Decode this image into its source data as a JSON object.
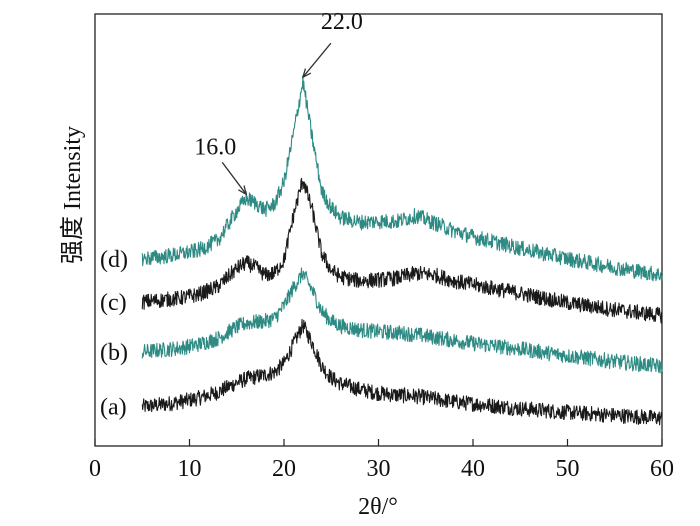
{
  "chart_data": {
    "type": "line",
    "title": "",
    "xlabel": "2θ/°",
    "ylabel": "强度 Intensity",
    "xlim": [
      0,
      60
    ],
    "xticks": [
      0,
      10,
      20,
      30,
      40,
      50,
      60
    ],
    "xtick_labels": [
      "0",
      "10",
      "20",
      "30",
      "40",
      "50",
      "60"
    ],
    "y_ticks_shown": false,
    "grid": false,
    "legend": "none",
    "annotations": [
      {
        "text": "22.0",
        "x": 22.0
      },
      {
        "text": "16.0",
        "x": 16.0
      }
    ],
    "series": [
      {
        "name": "(a)",
        "color": "#1a1a1a",
        "x": [
          5,
          7,
          9,
          11,
          13,
          15,
          16,
          17,
          18,
          19,
          20,
          21,
          22,
          23,
          24,
          25,
          26,
          28,
          30,
          32,
          34,
          36,
          38,
          40,
          45,
          50,
          55,
          60
        ],
        "y": [
          4.1,
          4.3,
          4.6,
          5.0,
          5.6,
          6.6,
          7.0,
          7.2,
          7.4,
          7.7,
          8.6,
          10.6,
          12.6,
          10.7,
          8.3,
          7.1,
          6.5,
          5.9,
          5.5,
          5.3,
          5.2,
          4.9,
          4.6,
          4.4,
          3.9,
          3.5,
          3.2,
          2.9
        ]
      },
      {
        "name": "(b)",
        "color": "#2e8b84",
        "x": [
          5,
          7,
          9,
          11,
          13,
          15,
          16,
          17,
          18,
          19,
          20,
          21,
          22,
          23,
          24,
          25,
          26,
          28,
          30,
          32,
          34,
          36,
          38,
          40,
          45,
          50,
          55,
          60
        ],
        "y": [
          9.8,
          10.0,
          10.2,
          10.6,
          11.2,
          12.4,
          12.8,
          12.9,
          13.0,
          13.3,
          14.6,
          16.5,
          18.0,
          16.2,
          14.0,
          13.0,
          12.5,
          12.1,
          11.9,
          11.8,
          11.6,
          11.3,
          11.0,
          10.7,
          10.1,
          9.4,
          8.8,
          8.3
        ]
      },
      {
        "name": "(c)",
        "color": "#1a1a1a",
        "x": [
          5,
          7,
          9,
          11,
          13,
          15,
          16,
          17,
          18,
          19,
          20,
          21,
          22,
          23,
          24,
          25,
          26,
          28,
          30,
          32,
          34,
          36,
          38,
          40,
          45,
          50,
          55,
          60
        ],
        "y": [
          15.0,
          15.2,
          15.4,
          15.8,
          16.6,
          18.5,
          19.1,
          18.6,
          17.8,
          18.0,
          19.4,
          24.0,
          27.8,
          24.5,
          20.0,
          18.3,
          17.6,
          17.2,
          17.3,
          17.5,
          18.0,
          17.8,
          17.2,
          16.8,
          15.9,
          14.9,
          14.2,
          13.6
        ]
      },
      {
        "name": "(d)",
        "color": "#2e8b84",
        "x": [
          5,
          7,
          9,
          11,
          13,
          15,
          16,
          17,
          18,
          19,
          20,
          21,
          22,
          23,
          24,
          25,
          26,
          28,
          30,
          32,
          34,
          36,
          38,
          40,
          45,
          50,
          55,
          60
        ],
        "y": [
          19.5,
          19.7,
          20.0,
          20.4,
          21.4,
          24.5,
          25.8,
          25.3,
          24.6,
          25.2,
          27.5,
          32.5,
          38.0,
          32.0,
          26.5,
          24.8,
          23.8,
          23.3,
          23.4,
          23.4,
          24.0,
          23.2,
          22.4,
          21.8,
          20.6,
          19.5,
          18.6,
          17.8
        ]
      }
    ]
  }
}
